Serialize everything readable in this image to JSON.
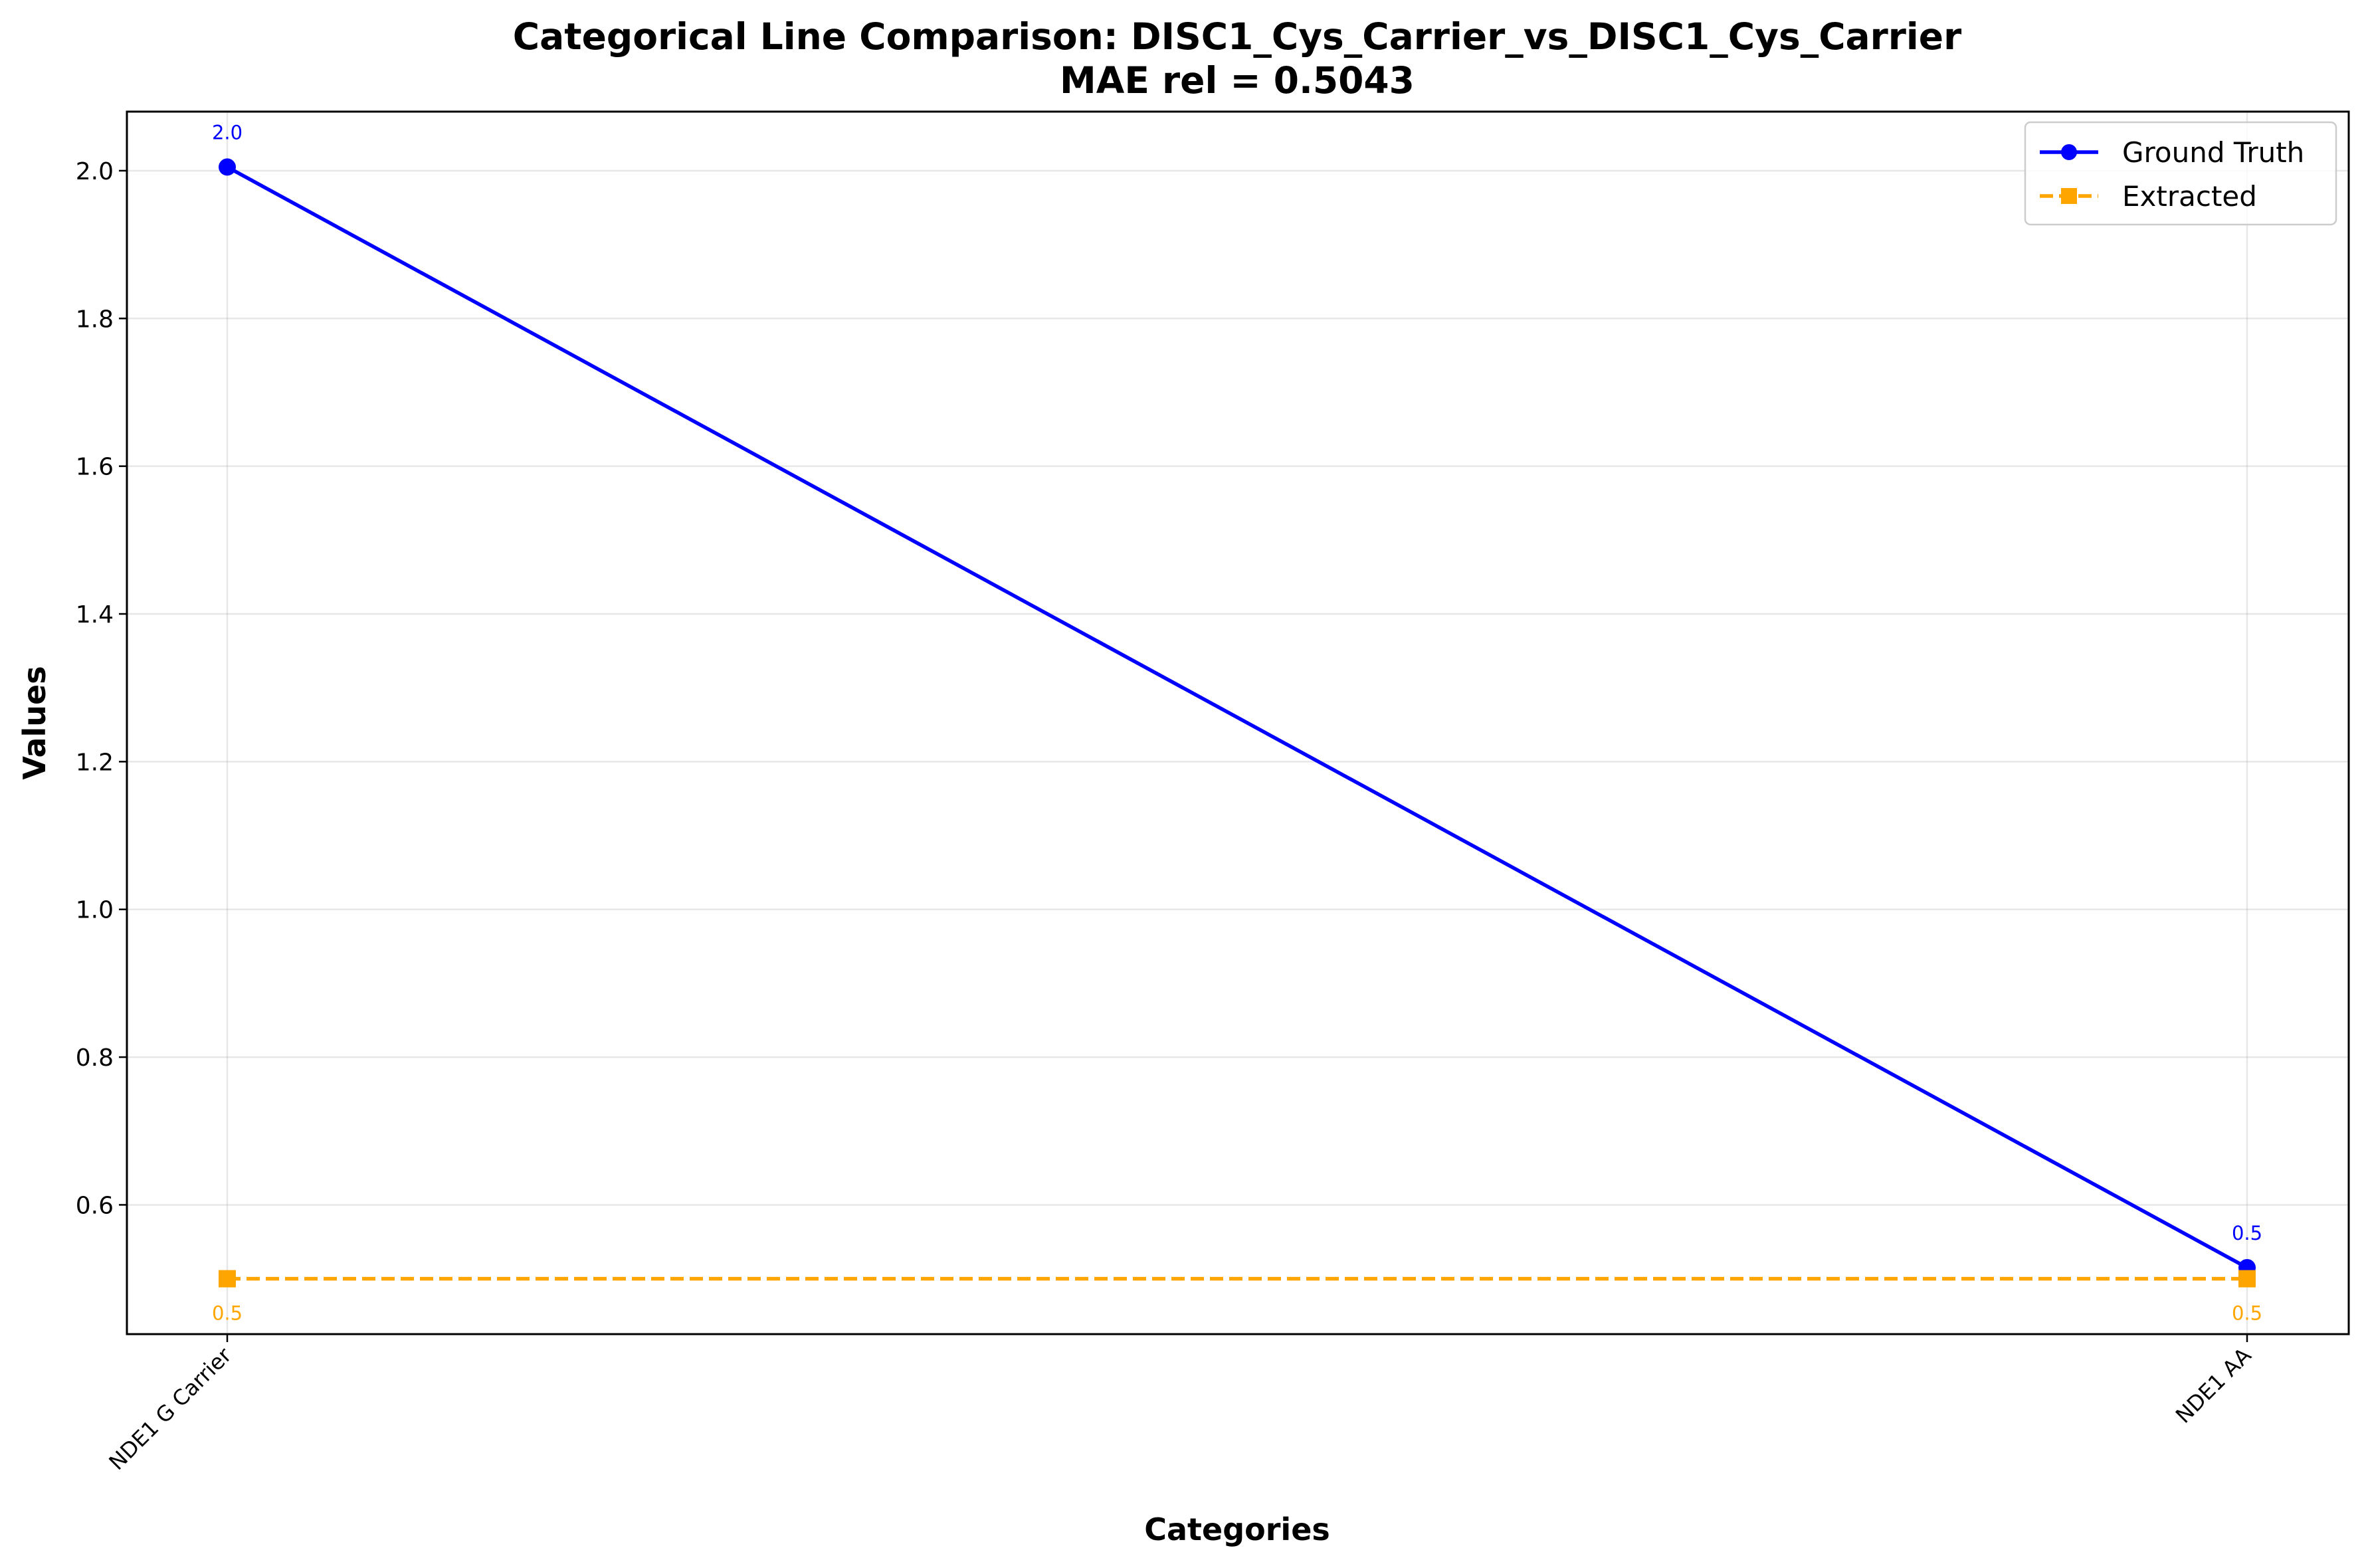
{
  "chart_data": {
    "type": "line",
    "title": "Categorical Line Comparison: DISC1_Cys_Carrier_vs_DISC1_Cys_Carrier",
    "subtitle": "MAE rel = 0.5043",
    "xlabel": "Categories",
    "ylabel": "Values",
    "categories": [
      "NDE1 G Carrier",
      "NDE1 AA"
    ],
    "ylim": [
      0.425,
      2.08
    ],
    "yticks": [
      0.6,
      0.8,
      1.0,
      1.2,
      1.4,
      1.6,
      1.8,
      2.0
    ],
    "ytick_labels": [
      "0.6",
      "0.8",
      "1.0",
      "1.2",
      "1.4",
      "1.6",
      "1.8",
      "2.0"
    ],
    "grid": true,
    "legend_position": "top-right",
    "series": [
      {
        "name": "Ground Truth",
        "values": [
          2.005,
          0.515
        ],
        "point_labels": [
          "2.0",
          "0.5"
        ],
        "color": "#0000ff",
        "line_style": "solid",
        "marker": "circle"
      },
      {
        "name": "Extracted",
        "values": [
          0.5,
          0.5
        ],
        "point_labels": [
          "0.5",
          "0.5"
        ],
        "color": "#ffa500",
        "line_style": "dashed",
        "marker": "square"
      }
    ]
  }
}
